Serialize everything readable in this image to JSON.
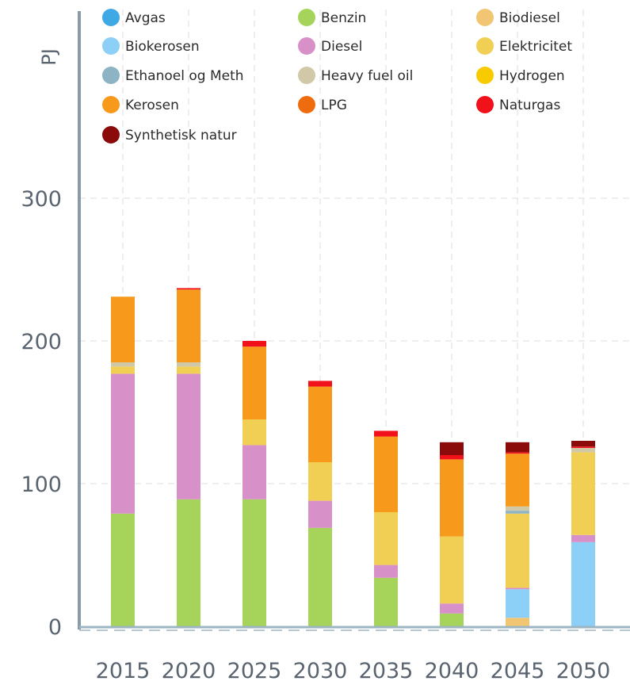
{
  "chart_data": {
    "type": "bar",
    "stacked": true,
    "title": "",
    "xlabel": "",
    "ylabel": "PJ",
    "ylim": [
      0,
      420
    ],
    "yticks": [
      0,
      100,
      200,
      300
    ],
    "grid": true,
    "legend_position": "top",
    "categories": [
      "2015",
      "2020",
      "2025",
      "2030",
      "2035",
      "2040",
      "2045",
      "2050"
    ],
    "series": [
      {
        "name": "Avgas",
        "color": "#3fa9e6",
        "values": [
          0,
          0,
          0,
          0,
          0,
          0,
          0,
          0
        ]
      },
      {
        "name": "Benzin",
        "color": "#a6d45a",
        "values": [
          79,
          89,
          89,
          69,
          34,
          9,
          0,
          0
        ]
      },
      {
        "name": "Biodiesel",
        "color": "#f2c572",
        "values": [
          0,
          0,
          0,
          0,
          0,
          0,
          6,
          0
        ]
      },
      {
        "name": "Biokerosen",
        "color": "#8ccff7",
        "values": [
          0,
          0,
          0,
          0,
          0,
          0,
          20,
          59
        ]
      },
      {
        "name": "Diesel",
        "color": "#d890c9",
        "values": [
          98,
          88,
          38,
          19,
          9,
          7,
          1,
          5
        ]
      },
      {
        "name": "Elektricitet",
        "color": "#f1cf55",
        "values": [
          5,
          5,
          18,
          27,
          37,
          47,
          52,
          58
        ]
      },
      {
        "name": "Ethanoel og Meth",
        "color": "#8cb4c4",
        "values": [
          0,
          0,
          0,
          0,
          0,
          0,
          2,
          0
        ]
      },
      {
        "name": "Heavy fuel oil",
        "color": "#d1c8a8",
        "values": [
          3,
          3,
          0,
          0,
          0,
          0,
          3,
          3
        ]
      },
      {
        "name": "Hydrogen",
        "color": "#f8cb00",
        "values": [
          0,
          0,
          0,
          0,
          0,
          0,
          0,
          0
        ]
      },
      {
        "name": "Kerosen",
        "color": "#f79a1c",
        "values": [
          46,
          51,
          51,
          53,
          53,
          54,
          37,
          0
        ]
      },
      {
        "name": "LPG",
        "color": "#ef6c0e",
        "values": [
          0,
          0,
          0,
          0,
          0,
          0,
          0,
          0
        ]
      },
      {
        "name": "Naturgas",
        "color": "#f0111b",
        "values": [
          0,
          1,
          4,
          4,
          4,
          3,
          1,
          1
        ]
      },
      {
        "name": "Synthetisk natur",
        "color": "#8b0a0a",
        "values": [
          0,
          0,
          0,
          0,
          0,
          9,
          7,
          4
        ]
      }
    ]
  }
}
